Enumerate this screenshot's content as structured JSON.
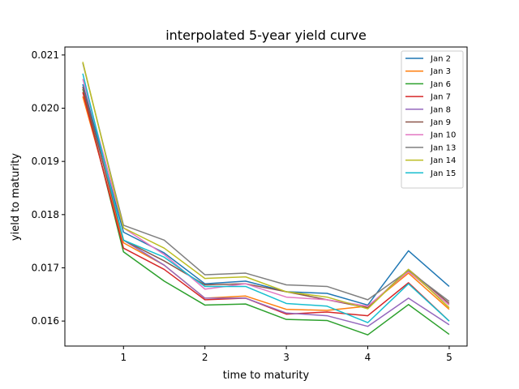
{
  "chart_data": {
    "type": "line",
    "title": "interpolated 5-year yield curve",
    "xlabel": "time to maturity",
    "ylabel": "yield to maturity",
    "x": [
      0.5,
      1,
      1.5,
      2,
      2.5,
      3,
      3.5,
      4,
      4.5,
      5
    ],
    "xlim": [
      0.28,
      5.22
    ],
    "ylim": [
      0.01553,
      0.02115
    ],
    "xticks": [
      1,
      2,
      3,
      4,
      5
    ],
    "xtick_labels": [
      "1",
      "2",
      "3",
      "4",
      "5"
    ],
    "yticks": [
      0.016,
      0.017,
      0.018,
      0.019,
      0.02,
      0.021
    ],
    "ytick_labels": [
      "0.016",
      "0.017",
      "0.018",
      "0.019",
      "0.020",
      "0.021"
    ],
    "grid": false,
    "legend_position": "top-right",
    "series": [
      {
        "name": "Jan 2",
        "color": "#1f77b4",
        "values": [
          0.02045,
          0.01767,
          0.01728,
          0.0167,
          0.01675,
          0.01655,
          0.01652,
          0.0163,
          0.01732,
          0.01665
        ]
      },
      {
        "name": "Jan 3",
        "color": "#ff7f0e",
        "values": [
          0.02022,
          0.01747,
          0.01705,
          0.01643,
          0.01647,
          0.01622,
          0.0162,
          0.01628,
          0.0169,
          0.01622
        ]
      },
      {
        "name": "Jan 6",
        "color": "#2ca02c",
        "values": [
          0.02036,
          0.0173,
          0.01675,
          0.0163,
          0.01632,
          0.01603,
          0.01601,
          0.01574,
          0.01631,
          0.01575
        ]
      },
      {
        "name": "Jan 7",
        "color": "#d62728",
        "values": [
          0.0203,
          0.01737,
          0.01697,
          0.0164,
          0.01643,
          0.01613,
          0.01617,
          0.0161,
          0.01672,
          0.016
        ]
      },
      {
        "name": "Jan 8",
        "color": "#9467bd",
        "values": [
          0.0204,
          0.01752,
          0.01705,
          0.01643,
          0.01643,
          0.01615,
          0.0161,
          0.0159,
          0.01643,
          0.01593
        ]
      },
      {
        "name": "Jan 9",
        "color": "#8c564b",
        "values": [
          0.0204,
          0.01752,
          0.01713,
          0.01668,
          0.0167,
          0.01655,
          0.0164,
          0.01625,
          0.01697,
          0.01633
        ]
      },
      {
        "name": "Jan 10",
        "color": "#e377c2",
        "values": [
          0.02055,
          0.01775,
          0.01725,
          0.0166,
          0.0167,
          0.01645,
          0.0164,
          0.01628,
          0.01693,
          0.0163
        ]
      },
      {
        "name": "Jan 13",
        "color": "#7f7f7f",
        "values": [
          0.02085,
          0.0178,
          0.01752,
          0.01687,
          0.0169,
          0.01668,
          0.01665,
          0.0164,
          0.01695,
          0.01637
        ]
      },
      {
        "name": "Jan 14",
        "color": "#bcbd22",
        "values": [
          0.02087,
          0.01775,
          0.01737,
          0.0168,
          0.01683,
          0.01655,
          0.01645,
          0.01623,
          0.01697,
          0.01625
        ]
      },
      {
        "name": "Jan 15",
        "color": "#17becf",
        "values": [
          0.02065,
          0.01752,
          0.0172,
          0.01665,
          0.01665,
          0.01633,
          0.01628,
          0.01597,
          0.0167,
          0.016
        ]
      }
    ]
  }
}
